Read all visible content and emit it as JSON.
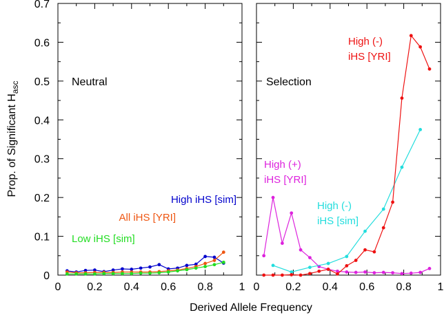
{
  "figure": {
    "ylabel": "Prop. of Significant H",
    "ylabel_sub": "asc",
    "xlabel": "Derived Allele Frequency"
  },
  "chart_data": [
    {
      "type": "line",
      "panel": "Neutral",
      "xlabel": "Derived Allele Frequency",
      "ylabel": "Prop. of Significant Hasc",
      "xlim": [
        0,
        1
      ],
      "ylim": [
        0,
        0.7
      ],
      "xticks": [
        "0",
        "0.2",
        "0.4",
        "0.6",
        "0.8",
        "1"
      ],
      "yticks": [
        "0",
        "0.1",
        "0.2",
        "0.3",
        "0.4",
        "0.5",
        "0.6",
        "0.7"
      ],
      "grid": false,
      "series": [
        {
          "name": "High iHS [sim]",
          "color": "#0000cc",
          "x": [
            0.05,
            0.1,
            0.15,
            0.2,
            0.25,
            0.3,
            0.35,
            0.4,
            0.45,
            0.5,
            0.55,
            0.6,
            0.65,
            0.7,
            0.75,
            0.8,
            0.85,
            0.9
          ],
          "y": [
            0.011,
            0.008,
            0.012,
            0.013,
            0.009,
            0.013,
            0.016,
            0.015,
            0.018,
            0.021,
            0.027,
            0.016,
            0.018,
            0.025,
            0.028,
            0.048,
            0.046,
            0.031
          ]
        },
        {
          "name": "All iHS [YRI]",
          "color": "#ee5511",
          "x": [
            0.05,
            0.1,
            0.15,
            0.2,
            0.25,
            0.3,
            0.35,
            0.4,
            0.45,
            0.5,
            0.55,
            0.6,
            0.65,
            0.7,
            0.75,
            0.8,
            0.85,
            0.9
          ],
          "y": [
            0.008,
            0.006,
            0.006,
            0.007,
            0.007,
            0.007,
            0.008,
            0.008,
            0.008,
            0.008,
            0.009,
            0.011,
            0.013,
            0.017,
            0.022,
            0.03,
            0.038,
            0.059
          ]
        },
        {
          "name": "Low iHS [sim]",
          "color": "#22dd22",
          "x": [
            0.05,
            0.1,
            0.15,
            0.2,
            0.25,
            0.3,
            0.35,
            0.4,
            0.45,
            0.5,
            0.55,
            0.6,
            0.65,
            0.7,
            0.75,
            0.8,
            0.85,
            0.9
          ],
          "y": [
            0.003,
            0.003,
            0.003,
            0.003,
            0.004,
            0.004,
            0.004,
            0.004,
            0.005,
            0.005,
            0.006,
            0.008,
            0.011,
            0.014,
            0.018,
            0.022,
            0.027,
            0.033
          ]
        }
      ]
    },
    {
      "type": "line",
      "panel": "Selection",
      "xlabel": "Derived Allele Frequency",
      "xlim": [
        0,
        1
      ],
      "ylim": [
        0,
        0.7
      ],
      "xticks": [
        "0",
        "0.2",
        "0.4",
        "0.6",
        "0.8",
        "1"
      ],
      "grid": false,
      "series": [
        {
          "name": "High (+) iHS [YRI]",
          "label_lines": [
            "High (+)",
            "iHS [YRI]"
          ],
          "color": "#dd22dd",
          "x": [
            0.04,
            0.09,
            0.14,
            0.19,
            0.24,
            0.29,
            0.34,
            0.39,
            0.44,
            0.49,
            0.54,
            0.59,
            0.64,
            0.69,
            0.74,
            0.79,
            0.84,
            0.89,
            0.94
          ],
          "y": [
            0.05,
            0.2,
            0.082,
            0.16,
            0.065,
            0.045,
            0.022,
            0.015,
            0.01,
            0.008,
            0.007,
            0.008,
            0.006,
            0.007,
            0.006,
            0.004,
            0.005,
            0.007,
            0.017
          ]
        },
        {
          "name": "High (-) iHS [sim]",
          "label_lines": [
            "High (-)",
            "iHS [sim]"
          ],
          "color": "#22dddd",
          "x": [
            0.09,
            0.19,
            0.29,
            0.39,
            0.49,
            0.59,
            0.69,
            0.79,
            0.89
          ],
          "y": [
            0.025,
            0.008,
            0.02,
            0.03,
            0.048,
            0.113,
            0.17,
            0.278,
            0.375
          ]
        },
        {
          "name": "High (-) iHS [YRI]",
          "label_lines": [
            "High (-)",
            "iHS [YRI]"
          ],
          "color": "#ee1111",
          "x": [
            0.04,
            0.09,
            0.14,
            0.19,
            0.24,
            0.29,
            0.34,
            0.39,
            0.44,
            0.49,
            0.54,
            0.59,
            0.64,
            0.69,
            0.74,
            0.79,
            0.84,
            0.89,
            0.94
          ],
          "y": [
            0.0,
            0.0,
            0.0,
            0.001,
            0.0,
            0.004,
            0.01,
            0.015,
            0.003,
            0.024,
            0.038,
            0.065,
            0.06,
            0.122,
            0.188,
            0.456,
            0.617,
            0.588,
            0.531
          ]
        }
      ]
    }
  ]
}
